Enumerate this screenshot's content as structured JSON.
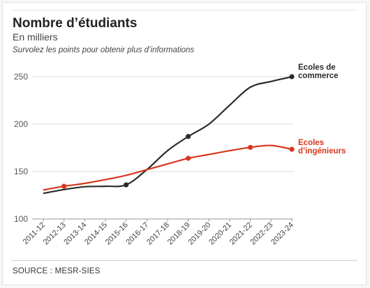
{
  "header": {
    "title": "Nombre d’étudiants",
    "subtitle": "En milliers",
    "hint": "Survolez les points pour obtenir plus d’informations"
  },
  "footer": {
    "source": "SOURCE : MESR-SIES"
  },
  "colors": {
    "commerce": "#2b2b2b",
    "ingenieurs": "#d7371d",
    "grid": "#dedede"
  },
  "chart_data": {
    "type": "line",
    "categories": [
      "2011-12",
      "2012-13",
      "2013-14",
      "2014-15",
      "2015-16",
      "2016-17",
      "2017-18",
      "2018-19",
      "2019-20",
      "2020-21",
      "2021-22",
      "2022-23",
      "2023-24"
    ],
    "yticks": [
      100,
      150,
      200,
      250
    ],
    "ylim": [
      100,
      250
    ],
    "grid": true,
    "legend": "end-of-line labels",
    "series": [
      {
        "name": "Ecoles de commerce",
        "label_lines": [
          "Ecoles de",
          "commerce"
        ],
        "color": "#2b2b2b",
        "values": [
          127,
          131,
          134,
          134.5,
          136,
          152,
          172,
          187,
          200,
          220,
          239,
          245,
          250
        ],
        "markers": [
          4,
          7,
          12
        ]
      },
      {
        "name": "Ecoles d'ingénieurs",
        "label_lines": [
          "Ecoles",
          "d’ingénieurs"
        ],
        "color": "#d7371d",
        "values": [
          130.5,
          134.5,
          137.5,
          141.5,
          146,
          152,
          158,
          164,
          168,
          172,
          175.5,
          177.5,
          173.5
        ],
        "markers": [
          1,
          7,
          10,
          12
        ]
      }
    ]
  }
}
